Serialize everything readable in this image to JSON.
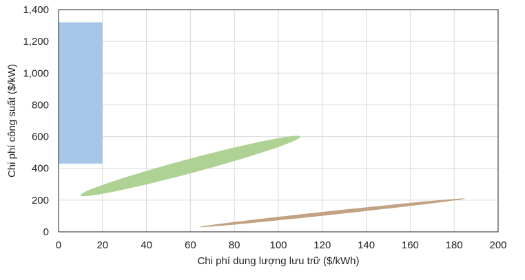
{
  "chart_data": {
    "type": "scatter",
    "xlabel": "Chi phí dung lượng lưu trữ ($/kWh)",
    "ylabel": "Chi phí công suất ($/kW)",
    "xlim": [
      0,
      200
    ],
    "ylim": [
      0,
      1400
    ],
    "x_ticks": [
      "0",
      "20",
      "40",
      "60",
      "80",
      "100",
      "120",
      "140",
      "160",
      "180",
      "200"
    ],
    "y_ticks": [
      "0",
      "200",
      "400",
      "600",
      "800",
      "1,000",
      "1,200",
      "1,400"
    ],
    "x_tick_values": [
      0,
      20,
      40,
      60,
      80,
      100,
      120,
      140,
      160,
      180,
      200
    ],
    "y_tick_values": [
      0,
      200,
      400,
      600,
      800,
      1000,
      1200,
      1400
    ],
    "grid": true,
    "regions": [
      {
        "shape": "rectangle",
        "color": "#a6c6e8",
        "x_range": [
          0,
          20
        ],
        "y_range": [
          430,
          1320
        ]
      },
      {
        "shape": "ellipse",
        "color": "#aed293",
        "from": [
          10,
          230
        ],
        "to": [
          110,
          600
        ],
        "thickness": 45
      },
      {
        "shape": "ellipse",
        "color": "#c1a383",
        "from": [
          64,
          30
        ],
        "to": [
          185,
          210
        ],
        "thickness": 12
      }
    ]
  }
}
